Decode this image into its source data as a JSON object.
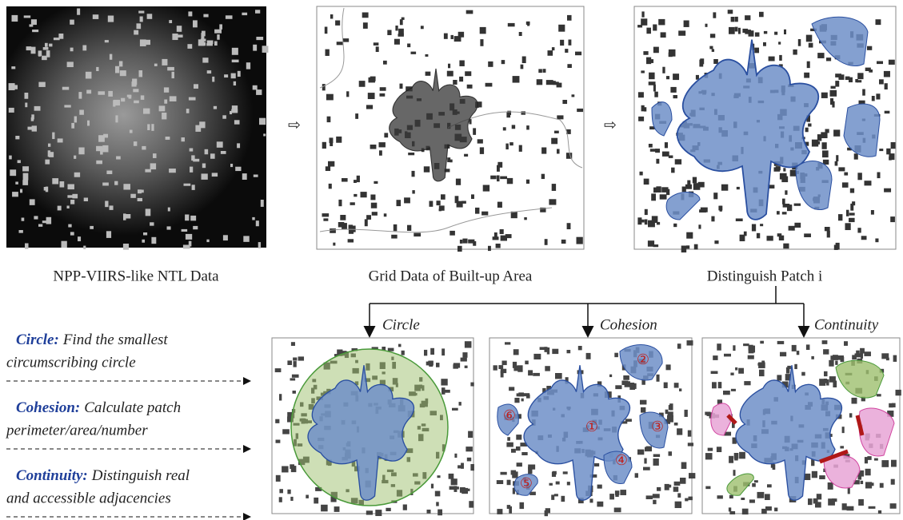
{
  "panels": [
    {
      "caption": "NPP-VIIRS-like NTL Data"
    },
    {
      "caption": "Grid Data of Built-up Area"
    },
    {
      "caption": "Distinguish Patch i"
    }
  ],
  "methods": [
    {
      "name": "Circle:",
      "lines": [
        "Find the smallest",
        "circumscribing circle"
      ]
    },
    {
      "name": "Cohesion:",
      "lines": [
        "Calculate patch",
        "perimeter/area/number"
      ]
    },
    {
      "name": "Continuity:",
      "lines": [
        "Distinguish real",
        "and accessible adjacencies"
      ]
    }
  ],
  "bottom_panels": [
    {
      "label": "Circle"
    },
    {
      "label": "Cohesion",
      "patch_numbers": [
        "①",
        "②",
        "③",
        "④",
        "⑤",
        "⑥"
      ]
    },
    {
      "label": "Continuity"
    }
  ]
}
